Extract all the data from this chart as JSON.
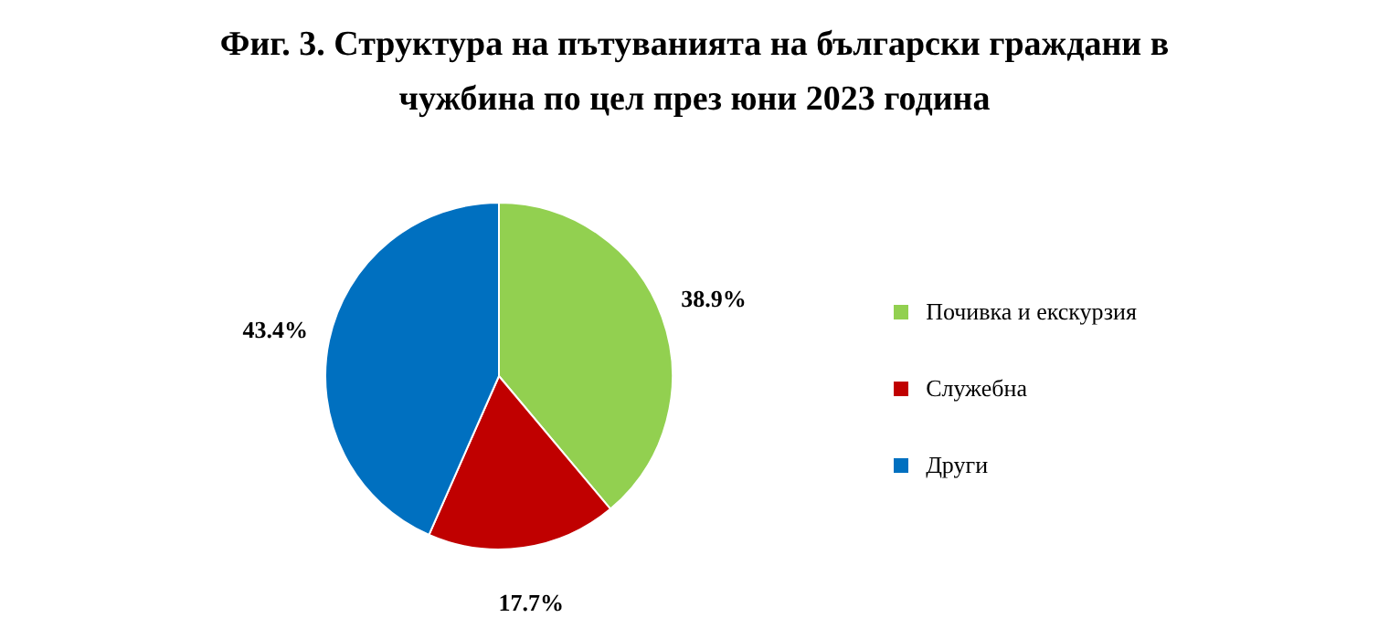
{
  "chart_data": {
    "type": "pie",
    "title": "Фиг. 3. Структура на пътуванията на български граждани в чужбина по цел през юни 2023 година",
    "categories": [
      "Почивка и екскурзия",
      "Служебна",
      "Други"
    ],
    "values": [
      38.9,
      17.7,
      43.4
    ],
    "value_labels": [
      "38.9%",
      "17.7%",
      "43.4%"
    ],
    "colors": [
      "#92d050",
      "#c00000",
      "#0070c0"
    ],
    "legend": "right"
  }
}
